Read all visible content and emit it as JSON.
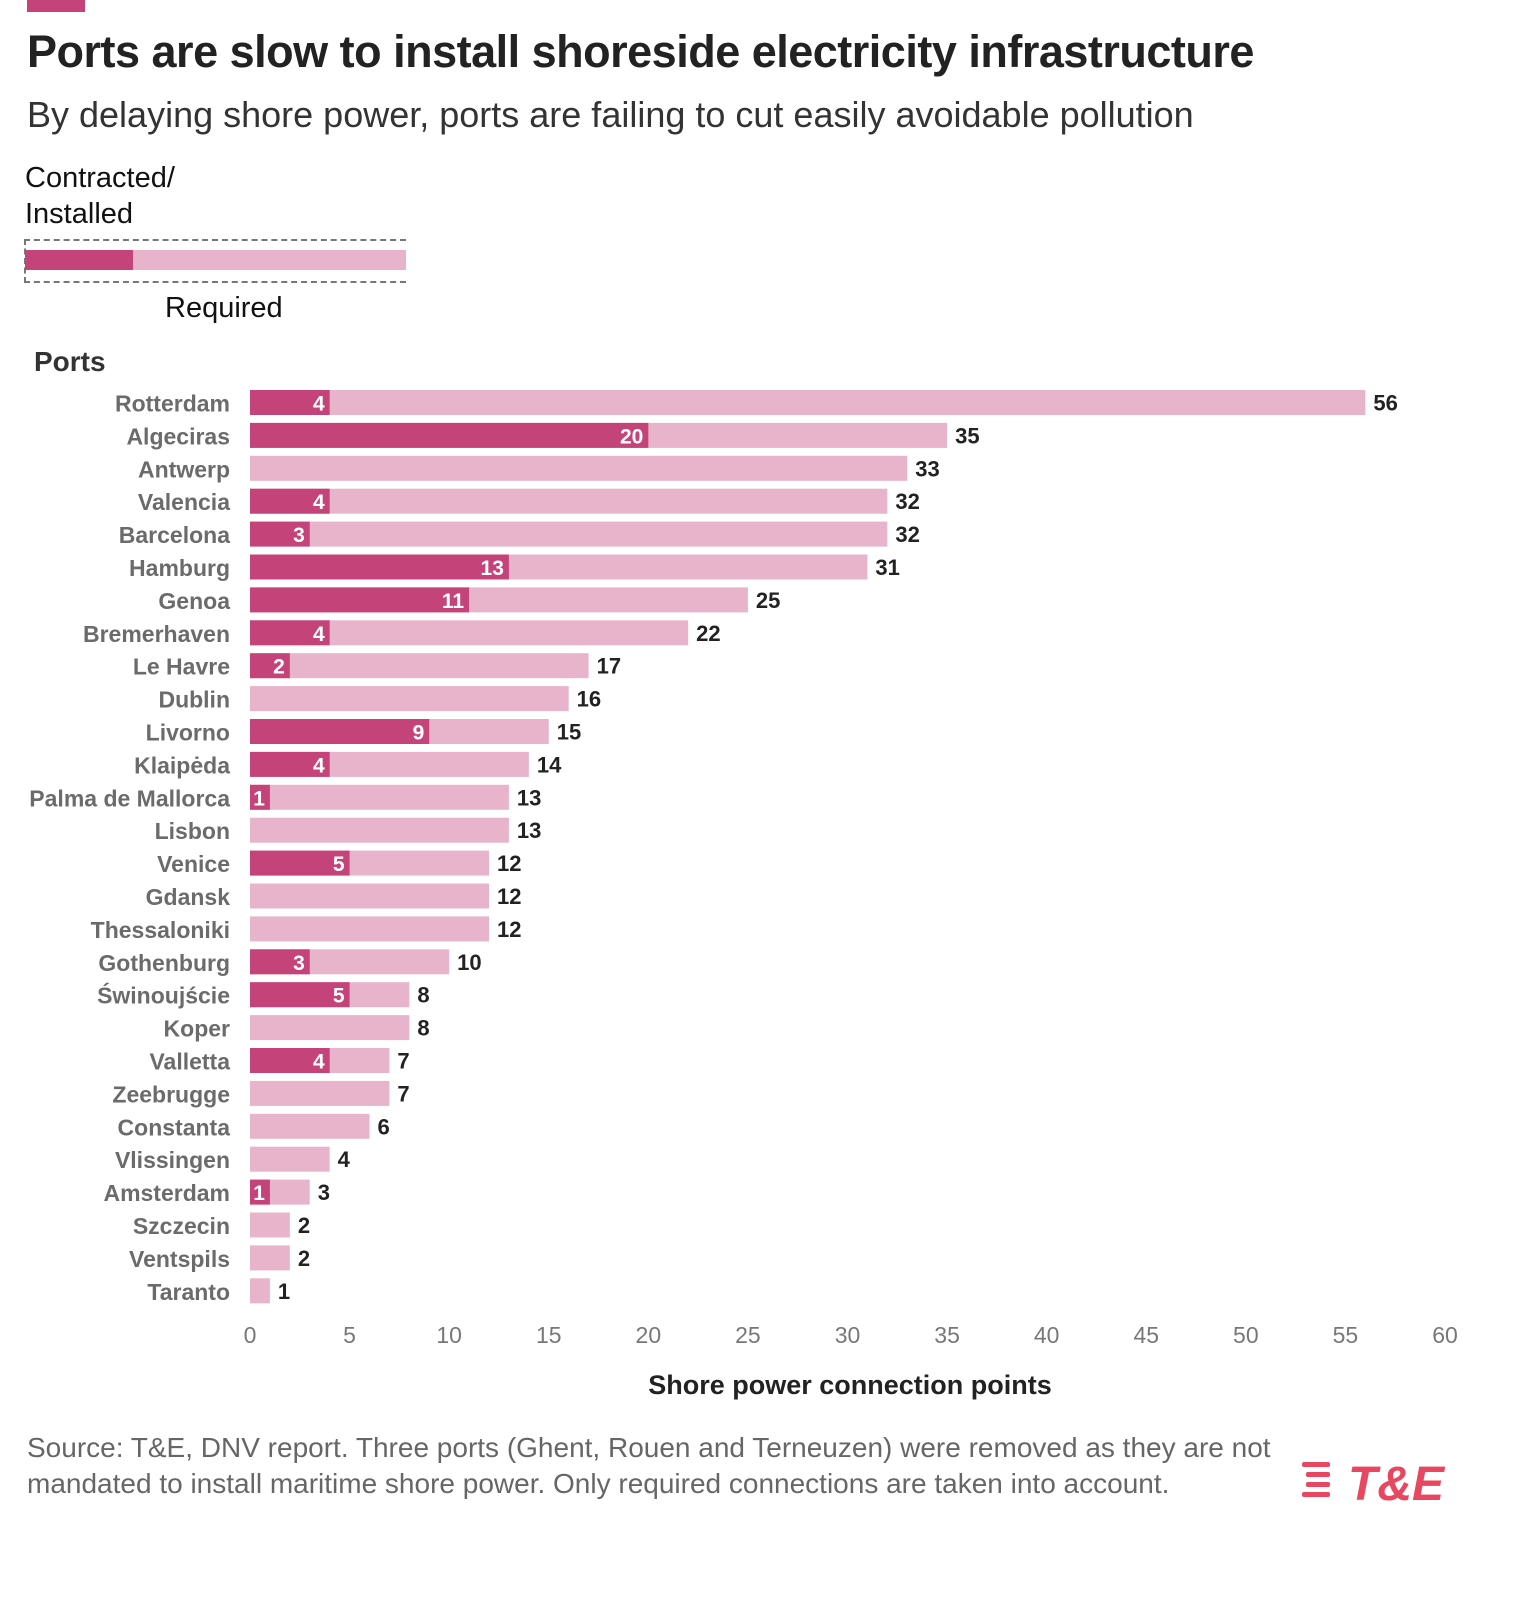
{
  "header": {
    "title": "Ports are slow to install shoreside electricity infrastructure",
    "subtitle": "By delaying shore power, ports are failing to cut easily avoidable pollution"
  },
  "legend": {
    "installed_label_line1": "Contracted/",
    "installed_label_line2": "Installed",
    "required_label": "Required",
    "installed_color": "#c4447a",
    "required_color": "#e8b4cb"
  },
  "footer": {
    "source": "Source: T&E, DNV report. Three ports (Ghent, Rouen and Terneuzen) were removed as they are not mandated to install maritime shore power. Only required connections are taken into account.",
    "logo_text": "T&E",
    "logo_color": "#e8475f"
  },
  "chart_data": {
    "type": "bar",
    "orientation": "horizontal",
    "ylabel": "Ports",
    "xlabel": "Shore power connection points",
    "xlim": [
      0,
      60
    ],
    "xticks": [
      "0",
      "5",
      "10",
      "15",
      "20",
      "25",
      "30",
      "35",
      "40",
      "45",
      "50",
      "55",
      "60"
    ],
    "grid": false,
    "categories": [
      "Rotterdam",
      "Algeciras",
      "Antwerp",
      "Valencia",
      "Barcelona",
      "Hamburg",
      "Genoa",
      "Bremerhaven",
      "Le Havre",
      "Dublin",
      "Livorno",
      "Klaipėda",
      "Palma de Mallorca",
      "Lisbon",
      "Venice",
      "Gdansk",
      "Thessaloniki",
      "Gothenburg",
      "Świnoujście",
      "Koper",
      "Valletta",
      "Zeebrugge",
      "Constanta",
      "Vlissingen",
      "Amsterdam",
      "Szczecin",
      "Ventspils",
      "Taranto"
    ],
    "series": [
      {
        "name": "Contracted/ Installed",
        "values": [
          4,
          20,
          0,
          4,
          3,
          13,
          11,
          4,
          2,
          0,
          9,
          4,
          1,
          0,
          5,
          0,
          0,
          3,
          5,
          0,
          4,
          0,
          0,
          0,
          1,
          0,
          0,
          0
        ]
      },
      {
        "name": "Required",
        "values": [
          56,
          35,
          33,
          32,
          32,
          31,
          25,
          22,
          17,
          16,
          15,
          14,
          13,
          13,
          12,
          12,
          12,
          10,
          8,
          8,
          7,
          7,
          6,
          4,
          3,
          2,
          2,
          1
        ]
      }
    ]
  }
}
